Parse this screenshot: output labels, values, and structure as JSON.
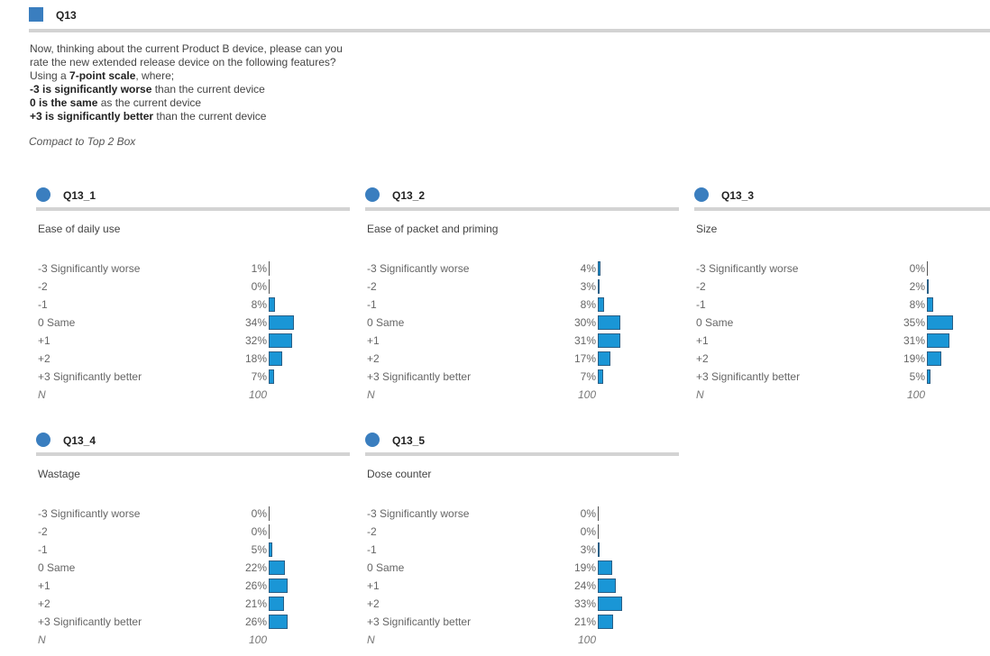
{
  "header": {
    "title": "Q13"
  },
  "intro": {
    "line1": "Now, thinking about the current Product B device, please can you",
    "line2": "rate the new extended release device on the following features?",
    "line3_pre": "Using a ",
    "line3_bold": "7-point scale",
    "line3_post": ", where;",
    "line4_bold": "-3 is significantly worse",
    "line4_post": " than the current device",
    "line5_bold": "0 is the same",
    "line5_post": " as the current device",
    "line6_bold": "+3 is significantly better",
    "line6_post": " than the current device"
  },
  "compact_label": "Compact to Top 2 Box",
  "scale_labels": [
    "-3 Significantly worse",
    "-2",
    "-1",
    "0 Same",
    "+1",
    "+2",
    "+3 Significantly better"
  ],
  "n_label": "N",
  "colors": {
    "bar": "#1a96d6",
    "accent": "#3a7ebf"
  },
  "panels": [
    {
      "id": "Q13_1",
      "desc": "Ease of daily use",
      "values": [
        1,
        0,
        8,
        34,
        32,
        18,
        7
      ],
      "n": "100"
    },
    {
      "id": "Q13_2",
      "desc": "Ease of packet and priming",
      "values": [
        4,
        3,
        8,
        30,
        31,
        17,
        7
      ],
      "n": "100"
    },
    {
      "id": "Q13_3",
      "desc": "Size",
      "values": [
        0,
        2,
        8,
        35,
        31,
        19,
        5
      ],
      "n": "100"
    },
    {
      "id": "Q13_4",
      "desc": "Wastage",
      "values": [
        0,
        0,
        5,
        22,
        26,
        21,
        26
      ],
      "n": "100"
    },
    {
      "id": "Q13_5",
      "desc": "Dose counter",
      "values": [
        0,
        0,
        3,
        19,
        24,
        33,
        21
      ],
      "n": "100"
    }
  ]
}
